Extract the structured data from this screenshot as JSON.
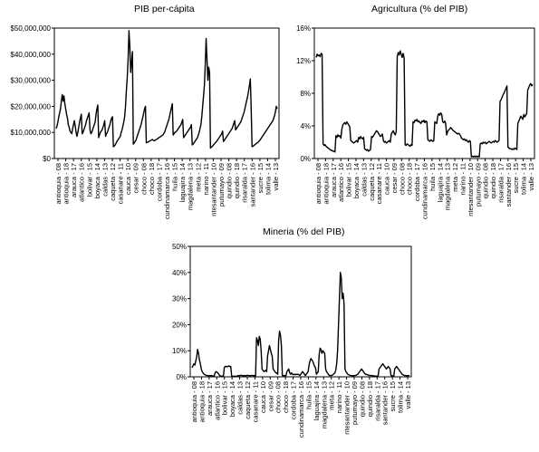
{
  "charts": [
    {
      "title": "PIB per-cápita",
      "chart_data": {
        "type": "line",
        "title": "PIB per-cápita",
        "xlabel": "",
        "ylabel": "",
        "ylim": [
          0,
          50000000
        ],
        "y_ticks": [
          "$0",
          "$10,000,000",
          "$20,000,000",
          "$30,000,000",
          "$40,000,000",
          "$50,000,000"
        ],
        "x_ticks": [
          "antioquia - 08",
          "antioquia - 18",
          "arauca - 17",
          "atlantico - 16",
          "bolivar - 15",
          "boyaca - 14",
          "caldas - 13",
          "caqueta - 12",
          "casanare - 11",
          "cauca - 10",
          "cesar - 09",
          "choco - 08",
          "choco - 18",
          "cordoba - 17",
          "cundinamarca - 16",
          "huila - 15",
          "laguajira - 14",
          "magdalena - 13",
          "meta - 12",
          "narino - 11",
          "ntesantander - 10",
          "putumayo - 09",
          "quindio - 08",
          "quindio - 18",
          "risaralda - 17",
          "santander - 16",
          "sucre - 15",
          "tolima - 14",
          "valle - 13"
        ],
        "grid": false,
        "values": [
          11500000,
          12500000,
          14000000,
          16000000,
          17500000,
          19000000,
          22000000,
          24500000,
          22000000,
          24000000,
          21000000,
          19000000,
          17000000,
          15500000,
          13000000,
          12000000,
          10500000,
          10000000,
          9500000,
          11500000,
          13000000,
          14500000,
          12500000,
          10000000,
          8500000,
          10000000,
          12000000,
          14000000,
          15500000,
          17000000,
          9500000,
          10000000,
          11000000,
          12000000,
          13000000,
          14500000,
          15500000,
          16500000,
          17500000,
          11000000,
          9500000,
          10000000,
          11000000,
          12000000,
          13000000,
          14000000,
          17000000,
          19000000,
          20500000,
          8000000,
          9000000,
          10000000,
          10500000,
          11000000,
          12000000,
          13000000,
          14500000,
          8500000,
          9500000,
          10000000,
          11000000,
          12000000,
          13000000,
          14500000,
          15500000,
          16000000,
          4500000,
          4800000,
          5200000,
          5800000,
          6500000,
          7000000,
          7500000,
          8000000,
          8500000,
          10000000,
          11000000,
          12500000,
          14000000,
          16000000,
          20000000,
          26000000,
          31000000,
          38000000,
          49000000,
          43000000,
          33000000,
          37000000,
          41000000,
          5500000,
          6000000,
          6500000,
          7000000,
          8000000,
          9000000,
          10000000,
          11000000,
          12000000,
          13000000,
          14500000,
          16000000,
          17500000,
          19000000,
          20000000,
          6000000,
          6200000,
          6300000,
          6500000,
          6700000,
          6900000,
          7100000,
          7300000,
          7000000,
          6800000,
          6900000,
          7200000,
          7400000,
          7600000,
          7900000,
          8100000,
          8300000,
          8500000,
          8800000,
          9000000,
          9500000,
          10000000,
          11000000,
          12000000,
          13000000,
          14000000,
          15000000,
          16500000,
          18000000,
          19500000,
          21000000,
          9000000,
          9500000,
          10000000,
          10200000,
          10500000,
          11000000,
          11500000,
          12000000,
          12500000,
          13000000,
          14000000,
          15000000,
          8000000,
          8500000,
          9000000,
          9500000,
          10000000,
          10500000,
          11000000,
          11500000,
          12000000,
          13000000,
          5200000,
          5500000,
          6000000,
          6500000,
          7000000,
          7500000,
          8000000,
          9000000,
          10000000,
          11500000,
          13000000,
          16000000,
          20000000,
          24000000,
          28000000,
          36000000,
          46000000,
          38000000,
          30000000,
          35000000,
          33000000,
          4000000,
          4300000,
          4600000,
          5000000,
          5400000,
          5800000,
          6200000,
          6500000,
          7000000,
          7500000,
          8000000,
          8500000,
          9000000,
          9500000,
          10500000,
          6500000,
          7000000,
          7500000,
          8000000,
          8500000,
          9000000,
          9500000,
          10000000,
          10500000,
          11000000,
          11500000,
          12500000,
          13500000,
          14500000,
          11000000,
          11500000,
          12000000,
          12500000,
          13000000,
          13500000,
          14000000,
          15000000,
          16000000,
          17000000,
          18000000,
          19500000,
          21000000,
          22500000,
          24000000,
          26000000,
          28000000,
          30500000,
          19000000,
          4500000,
          4700000,
          5000000,
          5200000,
          5500000,
          5800000,
          6000000,
          6300000,
          6600000,
          7000000,
          7500000,
          8000000,
          8500000,
          9000000,
          9500000,
          10000000,
          10500000,
          11000000,
          11500000,
          12000000,
          12500000,
          13000000,
          13500000,
          14000000,
          14500000,
          15500000,
          16500000,
          18000000,
          20000000,
          19000000
        ]
      }
    },
    {
      "title": "Agricultura (% del PIB)",
      "chart_data": {
        "type": "line",
        "title": "Agricultura (% del PIB)",
        "xlabel": "",
        "ylabel": "",
        "ylim": [
          0,
          16
        ],
        "y_ticks": [
          "0%",
          "4%",
          "8%",
          "12%",
          "16%"
        ],
        "x_ticks": [
          "antioquia - 08",
          "antioquia - 18",
          "arauca - 17",
          "atlantico - 16",
          "bolivar - 15",
          "boyaca - 14",
          "caldas - 13",
          "caqueta - 12",
          "casanare - 11",
          "cauca - 10",
          "cesar - 09",
          "choco - 08",
          "choco - 18",
          "cordoba - 17",
          "cundinamarca - 16",
          "huila - 15",
          "laguajira - 14",
          "magdalena - 13",
          "meta - 12",
          "narino - 11",
          "ntesantander - 10",
          "putumayo - 09",
          "quindio - 08",
          "quindio - 18",
          "risaralda - 17",
          "santander - 16",
          "sucre - 15",
          "tolima - 14",
          "valle - 13"
        ],
        "grid": false,
        "values": [
          12.4,
          12.8,
          12.6,
          12.7,
          12.5,
          12.9,
          12.8,
          1.8,
          1.6,
          1.7,
          1.5,
          1.4,
          1.3,
          1.2,
          1.1,
          1.0,
          1.0,
          0.9,
          0.9,
          0.8,
          2.8,
          2.6,
          2.9,
          2.7,
          2.8,
          2.5,
          3.6,
          4.1,
          4.3,
          4.4,
          4.2,
          4.5,
          4.3,
          4.1,
          3.9,
          2.2,
          2.1,
          2.0,
          1.9,
          2.0,
          2.1,
          2.2,
          2.0,
          2.6,
          2.4,
          2.7,
          2.5,
          2.4,
          2.6,
          1.2,
          1.1,
          1.0,
          1.1,
          0.9,
          1.0,
          1.1,
          2.7,
          2.6,
          2.8,
          3.0,
          3.2,
          3.4,
          3.3,
          3.1,
          2.9,
          2.7,
          2.8,
          3.0,
          2.2,
          2.0,
          2.1,
          1.9,
          2.0,
          2.1,
          2.2,
          2.0,
          3.0,
          3.2,
          3.4,
          3.1,
          2.9,
          3.3,
          12.5,
          13.0,
          12.7,
          13.2,
          12.8,
          12.4,
          12.9,
          12.3,
          1.7,
          1.6,
          1.8,
          1.7,
          1.6,
          1.5,
          1.7,
          1.6,
          4.5,
          4.4,
          4.7,
          4.6,
          4.8,
          4.5,
          4.6,
          4.4,
          4.3,
          4.6,
          4.5,
          4.7,
          4.4,
          4.6,
          4.5,
          2.3,
          2.2,
          2.1,
          2.3,
          2.2,
          2.1,
          2.2,
          4.5,
          4.4,
          4.3,
          5.2,
          5.5,
          5.3,
          5.6,
          5.4,
          4.5,
          4.4,
          4.6,
          4.3,
          2.9,
          3.3,
          3.5,
          3.6,
          3.8,
          3.7,
          3.5,
          3.4,
          3.3,
          3.2,
          3.1,
          3.0,
          3.1,
          3.0,
          2.8,
          2.5,
          2.4,
          2.3,
          2.4,
          2.2,
          2.3,
          2.1,
          2.0,
          2.2,
          2.1,
          0.2,
          0.3,
          0.2,
          0.3,
          0.2,
          0.3,
          0.2,
          0.3,
          0.2,
          1.8,
          1.9,
          1.8,
          2.0,
          1.9,
          2.0,
          1.8,
          1.9,
          2.0,
          2.1,
          2.0,
          1.9,
          2.0,
          2.1,
          2.0,
          2.2,
          2.1,
          2.0,
          2.1,
          2.2,
          7.0,
          7.2,
          7.5,
          7.8,
          8.0,
          8.3,
          8.6,
          8.9,
          1.4,
          1.3,
          1.2,
          1.2,
          1.1,
          1.2,
          1.1,
          1.3,
          1.2,
          1.1,
          4.3,
          4.6,
          4.9,
          5.2,
          5.0,
          4.8,
          5.4,
          5.1,
          5.3,
          5.5,
          8.4,
          8.7,
          9.0,
          9.2,
          8.9,
          9.1
        ]
      }
    },
    {
      "title": "Mineria (% del PIB)",
      "chart_data": {
        "type": "line",
        "title": "Mineria (% del PIB)",
        "xlabel": "",
        "ylabel": "",
        "ylim": [
          0,
          50
        ],
        "y_ticks": [
          "0%",
          "10%",
          "20%",
          "30%",
          "40%",
          "50%"
        ],
        "x_ticks": [
          "antioquia - 08",
          "antioquia - 18",
          "arauca - 17",
          "atlantico - 16",
          "bolivar - 15",
          "boyaca - 14",
          "caldas - 13",
          "caqueta - 12",
          "casanare - 11",
          "cauca - 10",
          "cesar - 09",
          "choco - 08",
          "choco - 18",
          "cordoba - 17",
          "cundinamarca - 16",
          "huila - 15",
          "laguajira - 14",
          "magdalena - 13",
          "meta - 12",
          "narino - 11",
          "ntesantander - 10",
          "putumayo - 09",
          "quindio - 08",
          "quindio - 18",
          "risaralda - 17",
          "santander - 16",
          "sucre - 15",
          "tolima - 14",
          "valle - 13"
        ],
        "grid": false,
        "values": [
          3.5,
          4.2,
          5.0,
          4.5,
          6.0,
          7.5,
          10.5,
          9.0,
          6.5,
          5.0,
          3.0,
          2.0,
          1.5,
          1.0,
          0.8,
          0.6,
          0.5,
          0.5,
          0.4,
          0.5,
          0.4,
          0.5,
          0.4,
          0.3,
          0.3,
          1.5,
          2.0,
          1.8,
          1.5,
          1.0,
          0.5,
          0.3,
          0.3,
          0.3,
          0.3,
          3.5,
          4.0,
          4.0,
          3.8,
          4.0,
          4.2,
          3.9,
          4.0,
          0.3,
          0.2,
          0.2,
          0.3,
          0.2,
          0.2,
          0.3,
          0.5,
          0.4,
          0.5,
          0.6,
          0.5,
          0.4,
          0.5,
          0.4,
          0.4,
          0.5,
          0.6,
          0.5,
          0.5,
          0.4,
          0.5,
          0.5,
          0.5,
          0.4,
          0.5,
          0.4,
          15.0,
          14.0,
          12.0,
          15.5,
          14.5,
          10.0,
          3.0,
          2.5,
          2.0,
          2.2,
          2.5,
          2.0,
          8.0,
          10.0,
          12.0,
          10.5,
          9.0,
          8.0,
          3.0,
          2.5,
          2.0,
          1.5,
          1.5,
          1.0,
          14.0,
          17.5,
          16.0,
          12.0,
          0.5,
          0.4,
          0.5,
          0.4,
          0.5,
          2.0,
          2.5,
          3.0,
          1.5,
          1.0,
          1.5,
          1.0,
          0.8,
          1.0,
          0.8,
          1.0,
          0.9,
          1.0,
          0.8,
          0.5,
          1.0,
          1.5,
          2.0,
          1.5,
          1.0,
          0.5,
          1.0,
          1.5,
          2.0,
          4.5,
          6.0,
          7.0,
          6.5,
          6.0,
          5.0,
          4.0,
          3.5,
          1.0,
          1.5,
          2.0,
          8.5,
          11.0,
          10.5,
          9.0,
          10.0,
          9.5,
          9.0,
          3.0,
          2.0,
          1.5,
          1.0,
          0.5,
          0.5,
          0.5,
          0.6,
          0.8,
          1.2,
          1.5,
          2.5,
          5.0,
          10.0,
          20.0,
          30.0,
          40.0,
          38.0,
          30.0,
          32.0,
          28.0,
          3.0,
          2.0,
          1.5,
          1.0,
          0.8,
          0.6,
          0.5,
          0.5,
          0.4,
          0.4,
          0.5,
          0.5,
          0.6,
          0.8,
          1.0,
          1.5,
          2.0,
          2.5,
          3.0,
          2.5,
          2.0,
          1.5,
          1.0,
          1.0,
          0.8,
          0.7,
          0.6,
          0.5,
          0.5,
          0.5,
          0.4,
          0.4,
          0.3,
          0.3,
          0.3,
          0.3,
          0.3,
          3.0,
          3.5,
          4.0,
          4.5,
          5.0,
          4.5,
          4.0,
          3.5,
          3.0,
          3.5,
          4.0,
          3.5,
          3.0,
          0.5,
          0.4,
          0.3,
          0.3,
          3.0,
          3.5,
          4.0,
          3.5,
          3.0,
          2.5,
          2.0,
          1.5,
          1.0,
          0.8,
          0.6,
          0.5,
          0.5,
          0.4,
          0.4,
          0.5,
          0.5
        ]
      }
    }
  ]
}
